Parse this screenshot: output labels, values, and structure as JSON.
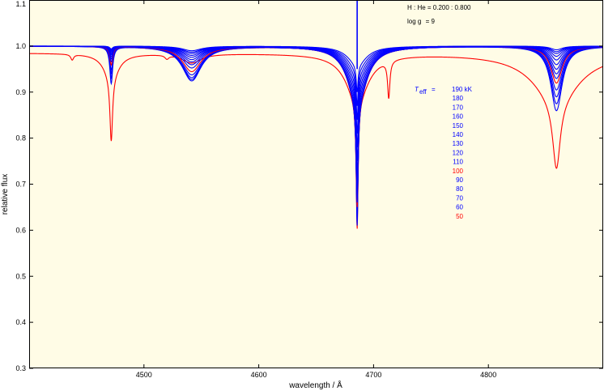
{
  "chart_data": {
    "type": "line",
    "xlabel": "wavelength / Å",
    "ylabel": "relative flux",
    "xlim": [
      4400,
      4900
    ],
    "ylim": [
      0.3,
      1.1
    ],
    "xticks": [
      "4500",
      "4600",
      "4700",
      "4800"
    ],
    "yticks": [
      "0.3",
      "0.4",
      "0.5",
      "0.6",
      "0.7",
      "0.8",
      "0.9",
      "1.0",
      "1.1"
    ],
    "grid": false,
    "background": "#fffce6",
    "annotations": {
      "composition": "H : He = 0.200 : 0.800",
      "logg_label": "log g",
      "logg_value": "= 9",
      "teff_label": "T",
      "teff_sub": "eff",
      "teff_eq": "="
    },
    "legend": {
      "placement": "right",
      "entries": [
        {
          "label": "190 kK",
          "color": "#0000ff"
        },
        {
          "label": "180",
          "color": "#0000ff"
        },
        {
          "label": "170",
          "color": "#0000ff"
        },
        {
          "label": "160",
          "color": "#0000ff"
        },
        {
          "label": "150",
          "color": "#0000ff"
        },
        {
          "label": "140",
          "color": "#0000ff"
        },
        {
          "label": "130",
          "color": "#0000ff"
        },
        {
          "label": "120",
          "color": "#0000ff"
        },
        {
          "label": "110",
          "color": "#0000ff"
        },
        {
          "label": "100",
          "color": "#ff0000"
        },
        {
          "label": "90",
          "color": "#0000ff"
        },
        {
          "label": "80",
          "color": "#0000ff"
        },
        {
          "label": "70",
          "color": "#0000ff"
        },
        {
          "label": "60",
          "color": "#0000ff"
        },
        {
          "label": "50",
          "color": "#ff0000"
        }
      ]
    },
    "series": [
      {
        "teff": 190,
        "color": "#0000ff",
        "continuum": 1.0,
        "lines": [
          [
            4471.5,
            0.006,
            1.5
          ],
          [
            4541.6,
            0.01,
            10
          ],
          [
            4685.7,
            0.06,
            1.0
          ],
          [
            4685.7,
            0.04,
            10
          ],
          [
            4713.2,
            0.0,
            1.0
          ],
          [
            4859.3,
            0.008,
            6
          ]
        ]
      },
      {
        "teff": 180,
        "color": "#0000ff",
        "continuum": 1.0,
        "lines": [
          [
            4471.5,
            0.008,
            1.5
          ],
          [
            4541.6,
            0.013,
            10
          ],
          [
            4685.7,
            0.08,
            1.0
          ],
          [
            4685.7,
            0.05,
            10
          ],
          [
            4713.2,
            0.0,
            1.0
          ],
          [
            4859.3,
            0.012,
            6
          ]
        ]
      },
      {
        "teff": 170,
        "color": "#0000ff",
        "continuum": 1.0,
        "lines": [
          [
            4471.5,
            0.01,
            1.5
          ],
          [
            4541.6,
            0.016,
            10
          ],
          [
            4685.7,
            0.1,
            1.0
          ],
          [
            4685.7,
            0.06,
            10
          ],
          [
            4713.2,
            0.0,
            1.0
          ],
          [
            4859.3,
            0.016,
            6
          ]
        ]
      },
      {
        "teff": 160,
        "color": "#0000ff",
        "continuum": 1.0,
        "lines": [
          [
            4471.5,
            0.012,
            1.5
          ],
          [
            4541.6,
            0.02,
            10
          ],
          [
            4685.7,
            0.12,
            1.0
          ],
          [
            4685.7,
            0.07,
            10
          ],
          [
            4713.2,
            0.0,
            1.0
          ],
          [
            4859.3,
            0.022,
            6
          ]
        ]
      },
      {
        "teff": 150,
        "color": "#0000ff",
        "continuum": 1.0,
        "lines": [
          [
            4471.5,
            0.015,
            1.5
          ],
          [
            4541.6,
            0.024,
            10
          ],
          [
            4685.7,
            0.14,
            1.0
          ],
          [
            4685.7,
            0.08,
            10
          ],
          [
            4713.2,
            0.0,
            1.0
          ],
          [
            4859.3,
            0.03,
            6
          ]
        ]
      },
      {
        "teff": 140,
        "color": "#0000ff",
        "continuum": 1.0,
        "lines": [
          [
            4471.5,
            0.018,
            1.5
          ],
          [
            4541.6,
            0.029,
            10
          ],
          [
            4685.7,
            0.16,
            1.0
          ],
          [
            4685.7,
            0.09,
            10
          ],
          [
            4713.2,
            0.0,
            1.0
          ],
          [
            4859.3,
            0.04,
            6
          ]
        ]
      },
      {
        "teff": 130,
        "color": "#0000ff",
        "continuum": 1.0,
        "lines": [
          [
            4471.5,
            0.022,
            1.5
          ],
          [
            4541.6,
            0.034,
            10
          ],
          [
            4685.7,
            0.18,
            1.0
          ],
          [
            4685.7,
            0.1,
            10
          ],
          [
            4713.2,
            0.0,
            1.0
          ],
          [
            4859.3,
            0.05,
            6
          ]
        ]
      },
      {
        "teff": 120,
        "color": "#0000ff",
        "continuum": 1.0,
        "lines": [
          [
            4471.5,
            0.027,
            1.5
          ],
          [
            4541.6,
            0.04,
            10
          ],
          [
            4685.7,
            0.2,
            1.0
          ],
          [
            4685.7,
            0.11,
            10
          ],
          [
            4713.2,
            0.0,
            1.0
          ],
          [
            4859.3,
            0.06,
            6
          ]
        ]
      },
      {
        "teff": 110,
        "color": "#0000ff",
        "continuum": 1.0,
        "lines": [
          [
            4471.5,
            0.033,
            1.5
          ],
          [
            4541.6,
            0.047,
            10
          ],
          [
            4685.7,
            0.22,
            1.0
          ],
          [
            4685.7,
            0.12,
            10
          ],
          [
            4713.2,
            0.0,
            1.0
          ],
          [
            4859.3,
            0.07,
            6
          ]
        ]
      },
      {
        "teff": 100,
        "color": "#ff0000",
        "continuum": 1.0,
        "lines": [
          [
            4471.5,
            0.04,
            1.5
          ],
          [
            4541.6,
            0.055,
            10
          ],
          [
            4685.7,
            0.23,
            1.0
          ],
          [
            4685.7,
            0.12,
            10
          ],
          [
            4713.2,
            0.0,
            1.0
          ],
          [
            4859.3,
            0.08,
            6
          ]
        ]
      },
      {
        "teff": 90,
        "color": "#0000ff",
        "continuum": 1.0,
        "lines": [
          [
            4471.5,
            0.05,
            1.5
          ],
          [
            4541.6,
            0.062,
            10
          ],
          [
            4685.7,
            0.24,
            1.0
          ],
          [
            4685.7,
            0.12,
            10
          ],
          [
            4713.2,
            0.0,
            1.0
          ],
          [
            4859.3,
            0.095,
            6
          ]
        ]
      },
      {
        "teff": 80,
        "color": "#0000ff",
        "continuum": 1.0,
        "lines": [
          [
            4471.5,
            0.058,
            1.5
          ],
          [
            4541.6,
            0.068,
            10
          ],
          [
            4685.7,
            0.25,
            1.0
          ],
          [
            4685.7,
            0.12,
            10
          ],
          [
            4713.2,
            0.0,
            1.0
          ],
          [
            4859.3,
            0.11,
            6
          ]
        ]
      },
      {
        "teff": 70,
        "color": "#0000ff",
        "continuum": 1.0,
        "lines": [
          [
            4471.5,
            0.068,
            1.5
          ],
          [
            4541.6,
            0.072,
            10
          ],
          [
            4685.7,
            0.26,
            1.0
          ],
          [
            4685.7,
            0.12,
            10
          ],
          [
            4713.2,
            0.0,
            1.0
          ],
          [
            4859.3,
            0.125,
            6
          ]
        ]
      },
      {
        "teff": 60,
        "color": "#0000ff",
        "continuum": 1.0,
        "lines": [
          [
            4471.5,
            0.08,
            1.5
          ],
          [
            4541.6,
            0.075,
            10
          ],
          [
            4685.7,
            0.27,
            1.0
          ],
          [
            4685.7,
            0.12,
            10
          ],
          [
            4713.2,
            0.0,
            1.0
          ],
          [
            4859.3,
            0.14,
            6
          ]
        ]
      },
      {
        "teff": 50,
        "color": "#ff0000",
        "continuum": 0.985,
        "lines": [
          [
            4471.5,
            0.14,
            1.4
          ],
          [
            4471.5,
            0.05,
            8
          ],
          [
            4541.6,
            0.02,
            10
          ],
          [
            4685.7,
            0.28,
            1.0
          ],
          [
            4685.7,
            0.1,
            12
          ],
          [
            4713.2,
            0.08,
            1.2
          ],
          [
            4859.3,
            0.15,
            4
          ],
          [
            4859.3,
            0.1,
            25
          ],
          [
            4437.5,
            0.012,
            1.5
          ],
          [
            4520.0,
            0.008,
            2
          ]
        ]
      }
    ]
  }
}
